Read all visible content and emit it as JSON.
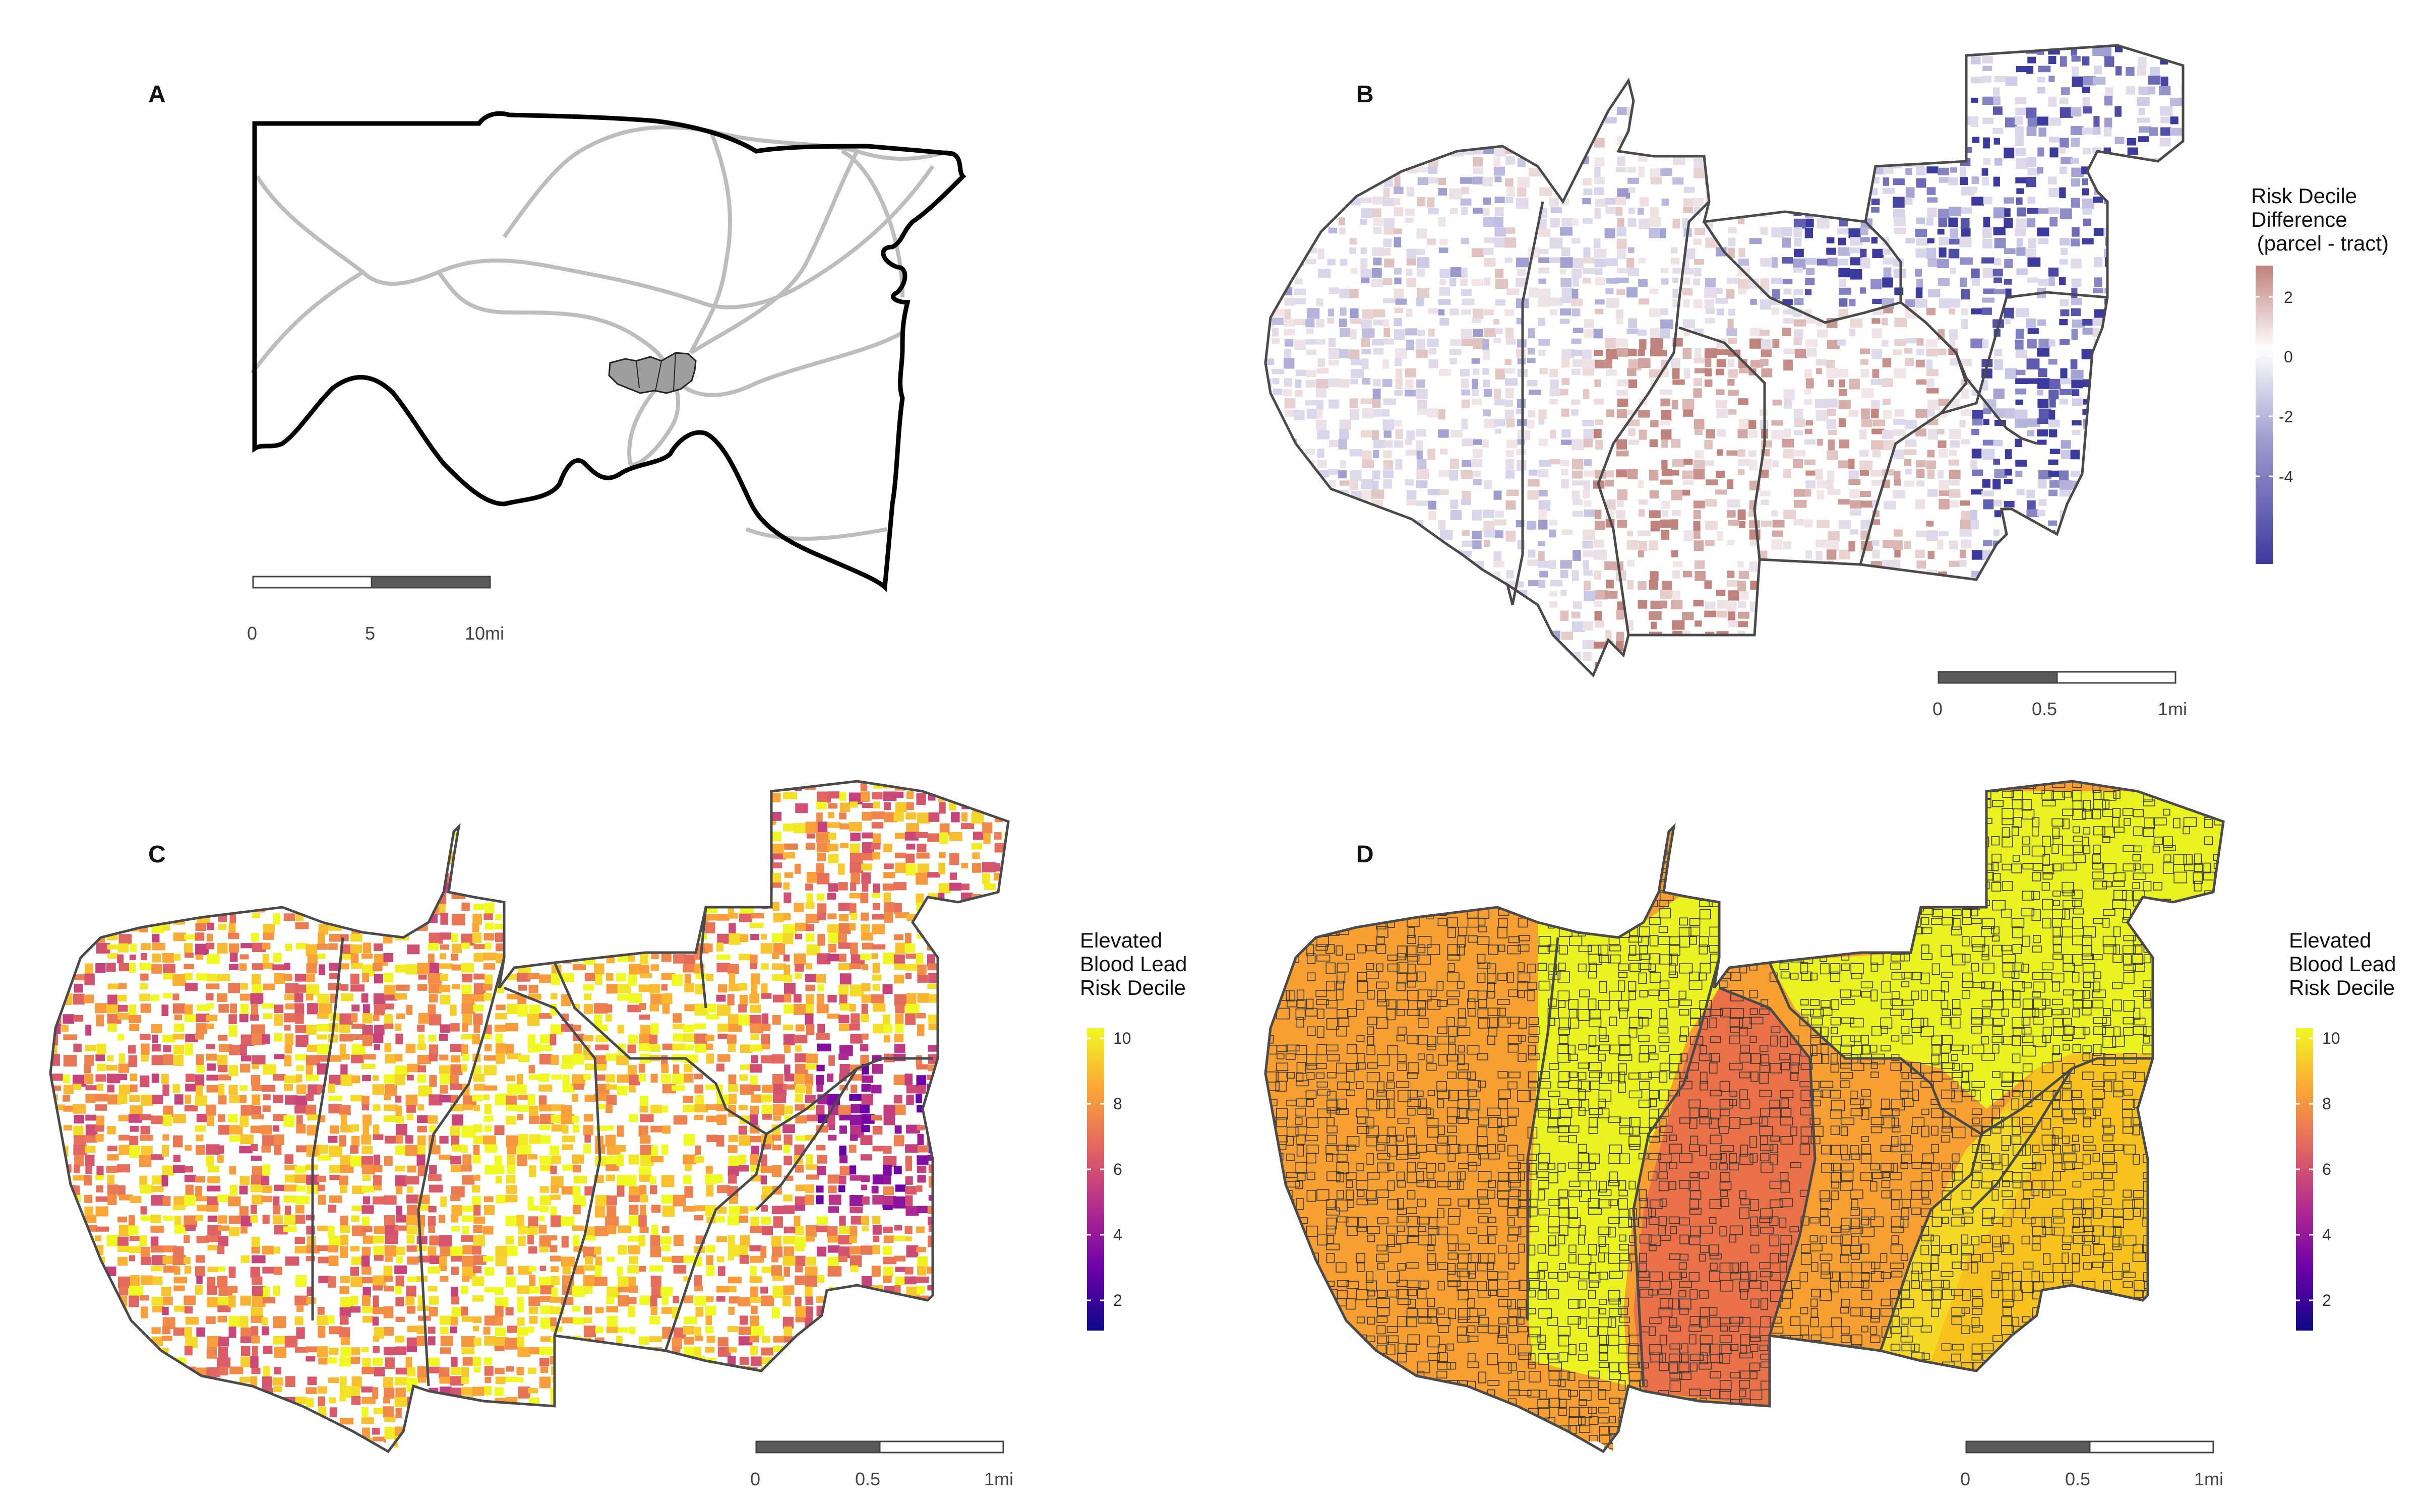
{
  "panels": {
    "a": {
      "letter": "A",
      "scale_ticks": [
        "0",
        "5",
        "10mi"
      ]
    },
    "b": {
      "letter": "B",
      "legend_title": "Risk Decile\nDifference\n (parcel - tract)",
      "legend_ticks": [
        "2",
        "0",
        "-2",
        "-4"
      ],
      "legend_colors": [
        "#c0827c",
        "#ffffff",
        "#3d3a9e"
      ],
      "scale_ticks": [
        "0",
        "0.5",
        "1mi"
      ]
    },
    "c": {
      "letter": "C",
      "legend_title": "Elevated\nBlood Lead\nRisk Decile",
      "legend_ticks": [
        "10",
        "8",
        "6",
        "4",
        "2"
      ],
      "legend_colors": [
        "#0d0887",
        "#6a00a8",
        "#b12a90",
        "#e16462",
        "#fca636",
        "#f0f921"
      ],
      "scale_ticks": [
        "0",
        "0.5",
        "1mi"
      ]
    },
    "d": {
      "letter": "D",
      "legend_title": "Elevated\nBlood Lead\nRisk Decile",
      "legend_ticks": [
        "10",
        "8",
        "6",
        "4",
        "2"
      ],
      "scale_ticks": [
        "0",
        "0.5",
        "1mi"
      ]
    }
  }
}
